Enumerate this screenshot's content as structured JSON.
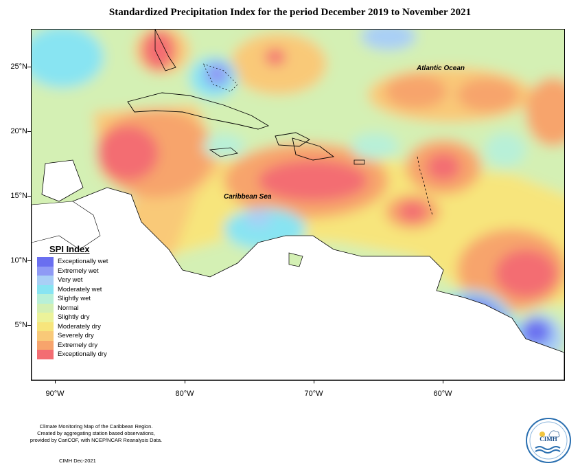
{
  "title": "Standardized Precipitation Index for the period December 2019 to November 2021",
  "map": {
    "latitude_labels": [
      "25°N",
      "20°N",
      "15°N",
      "10°N",
      "5°N"
    ],
    "longitude_labels": [
      "90°W",
      "80°W",
      "70°W",
      "60°W"
    ],
    "ocean_labels": {
      "atlantic": "Atlantic Ocean",
      "caribbean": "Caribbean Sea"
    }
  },
  "legend": {
    "title": "SPI Index",
    "items": [
      {
        "label": "Exceptionally wet",
        "color": "#6a6ff0"
      },
      {
        "label": "Extremely wet",
        "color": "#8f9af5"
      },
      {
        "label": "Very wet",
        "color": "#a9cff6"
      },
      {
        "label": "Moderately wet",
        "color": "#88e4f2"
      },
      {
        "label": "Slightly wet",
        "color": "#b8f0d8"
      },
      {
        "label": "Normal",
        "color": "#d4f0b4"
      },
      {
        "label": "Slightly dry",
        "color": "#ecf39a"
      },
      {
        "label": "Moderately dry",
        "color": "#f7e57c"
      },
      {
        "label": "Severely dry",
        "color": "#f9c978"
      },
      {
        "label": "Extremely dry",
        "color": "#f7a46c"
      },
      {
        "label": "Exceptionally dry",
        "color": "#f36d72"
      }
    ]
  },
  "footer": {
    "line1": "Climate Monitoring Map of the Caribbean Region.",
    "line2": "Created by aggregating station based observations,",
    "line3": "provided by CariCOF, with NCEP/NCAR Reanalysis Data.",
    "date": "CIMH Dec-2021"
  },
  "logo": {
    "text": "CIMH"
  }
}
